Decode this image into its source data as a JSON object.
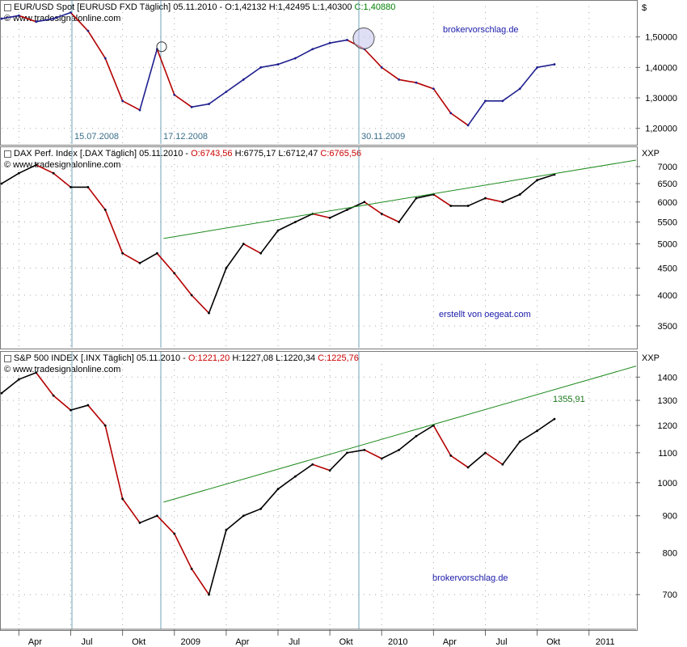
{
  "chart_data": [
    {
      "type": "line",
      "panel": "eurusd",
      "header": {
        "name": "EUR/USD Spot [EURUSD FXD  Täglich]",
        "date": "05.11.2010",
        "open": "O:1,42132",
        "high": "H:1,42495",
        "low": "L:1,40300",
        "close": "C:1,40880"
      },
      "copyright": "© www.tradesignalonline.com",
      "unit": "$",
      "yticks": [
        "1,50000",
        "1,40000",
        "1,30000",
        "1,20000"
      ],
      "ytick_values": [
        1.5,
        1.4,
        1.3,
        1.2
      ],
      "ylim": [
        1.17,
        1.6
      ],
      "annotation": "brokervorschlag.de",
      "markers": [
        "15.07.2008",
        "17.12.2008",
        "30.11.2009"
      ],
      "x": [
        "2008-03",
        "2008-04",
        "2008-05",
        "2008-06",
        "2008-07",
        "2008-08",
        "2008-09",
        "2008-10",
        "2008-11",
        "2008-12",
        "2009-01",
        "2009-02",
        "2009-03",
        "2009-04",
        "2009-05",
        "2009-06",
        "2009-07",
        "2009-08",
        "2009-09",
        "2009-10",
        "2009-11",
        "2009-12",
        "2010-01",
        "2010-02",
        "2010-03",
        "2010-04",
        "2010-05",
        "2010-06",
        "2010-07",
        "2010-08",
        "2010-09",
        "2010-10",
        "2010-11"
      ],
      "values": [
        1.56,
        1.57,
        1.55,
        1.56,
        1.58,
        1.52,
        1.43,
        1.29,
        1.26,
        1.46,
        1.31,
        1.27,
        1.28,
        1.32,
        1.36,
        1.4,
        1.41,
        1.43,
        1.46,
        1.48,
        1.49,
        1.46,
        1.4,
        1.36,
        1.35,
        1.33,
        1.25,
        1.21,
        1.29,
        1.29,
        1.33,
        1.4,
        1.41
      ]
    },
    {
      "type": "line",
      "panel": "dax",
      "header": {
        "name": "DAX Perf. Index [.DAX  Täglich]",
        "date": "05.11.2010",
        "open": "O:6743,56",
        "high": "H:6775,17",
        "low": "L:6712,47",
        "close": "C:6765,56"
      },
      "copyright": "© www.tradesignalonline.com",
      "unit": "XXP",
      "yticks": [
        "7000",
        "6500",
        "6000",
        "5500",
        "5000",
        "4500",
        "4000",
        "3500"
      ],
      "ytick_values": [
        7000,
        6500,
        6000,
        5500,
        5000,
        4500,
        4000,
        3500
      ],
      "ylim": [
        3250,
        7250
      ],
      "annotation": "erstellt von oegeat.com",
      "trendline": {
        "x": [
          "2008-12",
          "2011-02"
        ],
        "y": [
          5120,
          7200
        ]
      },
      "x": [
        "2008-03",
        "2008-04",
        "2008-05",
        "2008-06",
        "2008-07",
        "2008-08",
        "2008-09",
        "2008-10",
        "2008-11",
        "2008-12",
        "2009-01",
        "2009-02",
        "2009-03",
        "2009-04",
        "2009-05",
        "2009-06",
        "2009-07",
        "2009-08",
        "2009-09",
        "2009-10",
        "2009-11",
        "2009-12",
        "2010-01",
        "2010-02",
        "2010-03",
        "2010-04",
        "2010-05",
        "2010-06",
        "2010-07",
        "2010-08",
        "2010-09",
        "2010-10",
        "2010-11"
      ],
      "values": [
        6500,
        6800,
        7050,
        6800,
        6400,
        6400,
        5800,
        4800,
        4600,
        4800,
        4400,
        4000,
        3700,
        4500,
        5000,
        4800,
        5300,
        5500,
        5700,
        5600,
        5800,
        6000,
        5700,
        5500,
        6100,
        6200,
        5900,
        5900,
        6100,
        6000,
        6200,
        6600,
        6760
      ]
    },
    {
      "type": "line",
      "panel": "sp500",
      "header": {
        "name": "S&P 500 INDEX [.INX  Täglich]",
        "date": "05.11.2010",
        "open": "O:1221,20",
        "high": "H:1227,08",
        "low": "L:1220,34",
        "close": "C:1225,76"
      },
      "copyright": "© www.tradesignalonline.com",
      "unit": "XXP",
      "yticks": [
        "1400",
        "1300",
        "1200",
        "1100",
        "1000",
        "900",
        "800",
        "700"
      ],
      "ytick_values": [
        1400,
        1300,
        1200,
        1100,
        1000,
        900,
        800,
        700
      ],
      "ylim": [
        640,
        1460
      ],
      "annotation": "brokervorschlag.de",
      "trend_value_label": "1355,91",
      "trendline": {
        "x": [
          "2008-12",
          "2011-02"
        ],
        "y": [
          940,
          1450
        ]
      },
      "x": [
        "2008-03",
        "2008-04",
        "2008-05",
        "2008-06",
        "2008-07",
        "2008-08",
        "2008-09",
        "2008-10",
        "2008-11",
        "2008-12",
        "2009-01",
        "2009-02",
        "2009-03",
        "2009-04",
        "2009-05",
        "2009-06",
        "2009-07",
        "2009-08",
        "2009-09",
        "2009-10",
        "2009-11",
        "2009-12",
        "2010-01",
        "2010-02",
        "2010-03",
        "2010-04",
        "2010-05",
        "2010-06",
        "2010-07",
        "2010-08",
        "2010-09",
        "2010-10",
        "2010-11"
      ],
      "values": [
        1330,
        1390,
        1420,
        1320,
        1260,
        1280,
        1200,
        950,
        880,
        900,
        850,
        760,
        700,
        860,
        900,
        920,
        980,
        1020,
        1060,
        1040,
        1100,
        1110,
        1080,
        1110,
        1160,
        1200,
        1090,
        1050,
        1100,
        1060,
        1140,
        1180,
        1225
      ]
    }
  ],
  "xaxis": {
    "labels": [
      "Apr",
      "Jul",
      "Okt",
      "2009",
      "Apr",
      "Jul",
      "Okt",
      "2010",
      "Apr",
      "Jul",
      "Okt",
      "2011"
    ],
    "positions": [
      "2008-04",
      "2008-07",
      "2008-10",
      "2009-01",
      "2009-04",
      "2009-07",
      "2009-10",
      "2010-01",
      "2010-04",
      "2010-07",
      "2010-10",
      "2011-01"
    ]
  },
  "colors": {
    "price": "#000000",
    "eurusd_line": "#1f1f8f",
    "down_segment": "#b40000",
    "trendline": "#1d8a1d",
    "marker_line": "#6fa3b8",
    "grid": "#a8a8a8",
    "annotation": "#1a1aaa",
    "header_red": "#cc0000",
    "header_green": "#008000"
  }
}
